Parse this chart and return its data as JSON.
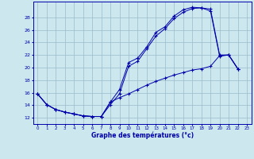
{
  "bg_color": "#cce8ee",
  "line_color": "#0000aa",
  "grid_color": "#99bbcc",
  "xlabel": "Graphe des températures (°c)",
  "xlim": [
    -0.5,
    23.5
  ],
  "ylim": [
    11.0,
    30.5
  ],
  "xticks": [
    0,
    1,
    2,
    3,
    4,
    5,
    6,
    7,
    8,
    9,
    10,
    11,
    12,
    13,
    14,
    15,
    16,
    17,
    18,
    19,
    20,
    21,
    22,
    23
  ],
  "yticks": [
    12,
    14,
    16,
    18,
    20,
    22,
    24,
    26,
    28
  ],
  "s1x": [
    0,
    1,
    2,
    3,
    4,
    5,
    6,
    7,
    8,
    9,
    10,
    11,
    12,
    13,
    14,
    15,
    16,
    17,
    18,
    19,
    20,
    21,
    22
  ],
  "s1y": [
    15.8,
    14.1,
    13.3,
    12.9,
    12.6,
    12.3,
    12.2,
    12.2,
    14.5,
    16.5,
    20.8,
    21.5,
    23.3,
    25.6,
    26.5,
    28.2,
    29.2,
    29.6,
    29.5,
    29.3,
    22.0,
    22.0,
    19.8
  ],
  "s2x": [
    0,
    1,
    2,
    3,
    4,
    5,
    6,
    7,
    8,
    9,
    10,
    11,
    12,
    13,
    14,
    15,
    16,
    17,
    18,
    19,
    20,
    21,
    22
  ],
  "s2y": [
    15.8,
    14.1,
    13.3,
    12.9,
    12.6,
    12.3,
    12.2,
    12.2,
    14.1,
    15.8,
    20.2,
    21.0,
    23.0,
    25.0,
    26.2,
    27.8,
    28.8,
    29.4,
    29.5,
    29.0,
    21.8,
    22.0,
    19.8
  ],
  "s3x": [
    0,
    1,
    2,
    3,
    4,
    5,
    6,
    7,
    8,
    9,
    10,
    11,
    12,
    13,
    14,
    15,
    16,
    17,
    18,
    19,
    20,
    21,
    22
  ],
  "s3y": [
    15.8,
    14.1,
    13.3,
    12.9,
    12.6,
    12.3,
    12.2,
    12.2,
    14.5,
    15.2,
    15.8,
    16.5,
    17.2,
    17.8,
    18.3,
    18.8,
    19.2,
    19.6,
    19.8,
    20.2,
    21.9,
    22.0,
    19.8
  ],
  "figsize": [
    3.2,
    2.0
  ],
  "dpi": 100
}
